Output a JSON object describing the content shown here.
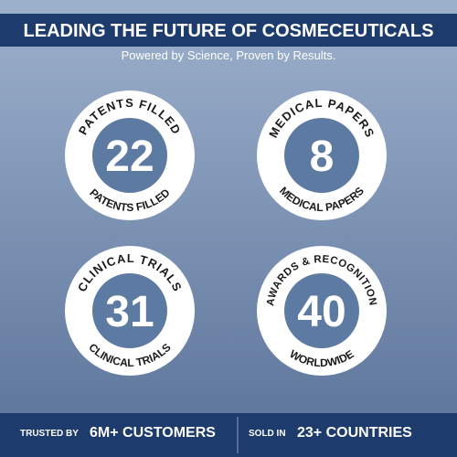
{
  "header": {
    "title": "LEADING THE FUTURE OF COSMECEUTICALS",
    "subtitle": "Powered by Science, Proven by Results."
  },
  "badges": [
    {
      "top_text": "PATENTS FILLED",
      "number": 22,
      "bottom_text": "PATENTS FILLED"
    },
    {
      "top_text": "MEDICAL PAPERS",
      "number": 8,
      "bottom_text": "MEDICAL PAPERS"
    },
    {
      "top_text": "CLINICAL TRIALS",
      "number": 31,
      "bottom_text": "CLINICAL TRIALS"
    },
    {
      "top_text": "AWARDS & RECOGNITION",
      "number": 40,
      "bottom_text": "WORLDWIDE"
    }
  ],
  "footer": {
    "items": [
      {
        "label": "TRUSTED BY",
        "value": "6M+ CUSTOMERS"
      },
      {
        "label": "SOLD IN",
        "value": "23+ COUNTRIES"
      }
    ]
  }
}
